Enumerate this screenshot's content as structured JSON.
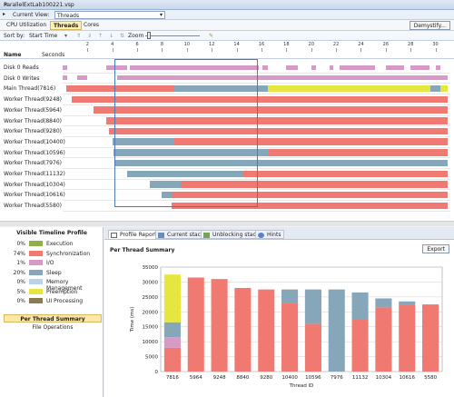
{
  "window": {
    "title": "ParallelExtLab100221.vsp"
  },
  "view": {
    "label": "Current View:",
    "selected": "Threads"
  },
  "tabs": [
    {
      "label": "CPU Utilization"
    },
    {
      "label": "Threads"
    },
    {
      "label": "Cores"
    }
  ],
  "demystify_label": "Demystify...",
  "toolbar": {
    "sort_label": "Sort by:",
    "sort_value": "Start Time",
    "zoom_label": "Zoom"
  },
  "timeline": {
    "name_header": "Name",
    "seconds_header": "Seconds",
    "ticks": [
      "2",
      "4",
      "6",
      "8",
      "10",
      "12",
      "14",
      "16",
      "18",
      "20",
      "22",
      "24",
      "26",
      "28",
      "30"
    ],
    "rows": [
      {
        "label": "Disk 0 Reads"
      },
      {
        "label": "Disk 0 Writes"
      },
      {
        "label": "Main Thread(7816)"
      },
      {
        "label": "Worker Thread(9248)"
      },
      {
        "label": "Worker Thread(5964)"
      },
      {
        "label": "Worker Thread(8840)"
      },
      {
        "label": "Worker Thread(9280)"
      },
      {
        "label": "Worker Thread(10400)"
      },
      {
        "label": "Worker Thread(10596)"
      },
      {
        "label": "Worker Thread(7976)"
      },
      {
        "label": "Worker Thread(11132)"
      },
      {
        "label": "Worker Thread(10304)"
      },
      {
        "label": "Worker Thread(10616)"
      },
      {
        "label": "Worker Thread(5580)"
      }
    ]
  },
  "profile": {
    "title": "Visible Timeline Profile",
    "legend": [
      {
        "pct": "0%",
        "name": "Execution",
        "color": "#8fb04a"
      },
      {
        "pct": "74%",
        "name": "Synchronization",
        "color": "#f07a72"
      },
      {
        "pct": "1%",
        "name": "I/O",
        "color": "#d79ac6"
      },
      {
        "pct": "20%",
        "name": "Sleep",
        "color": "#86a6ba"
      },
      {
        "pct": "0%",
        "name": "Memory Management",
        "color": "#bcd2e6"
      },
      {
        "pct": "5%",
        "name": "Preemption",
        "color": "#e6e640"
      },
      {
        "pct": "0%",
        "name": "UI Processing",
        "color": "#8b7b52"
      }
    ],
    "per_thread_summary": "Per Thread Summary",
    "file_operations": "File Operations"
  },
  "report_tabs": [
    {
      "label": "Profile Report"
    },
    {
      "label": "Current stack"
    },
    {
      "label": "Unblocking stack"
    },
    {
      "label": "Hints"
    }
  ],
  "summary": {
    "title": "Per Thread Summary",
    "export_label": "Export"
  },
  "chart_data": {
    "type": "bar",
    "stacked": true,
    "categories": [
      "7816",
      "5964",
      "9248",
      "8840",
      "9280",
      "10400",
      "10596",
      "7976",
      "11132",
      "10304",
      "10616",
      "5580"
    ],
    "series": [
      {
        "name": "Synchronization",
        "color": "#f07a72",
        "values": [
          8000,
          31500,
          31000,
          28000,
          27500,
          23000,
          16000,
          0,
          17500,
          21500,
          22500,
          22500
        ]
      },
      {
        "name": "I/O",
        "color": "#d79ac6",
        "values": [
          3500,
          0,
          0,
          0,
          0,
          0,
          0,
          0,
          0,
          0,
          0,
          0
        ]
      },
      {
        "name": "Sleep",
        "color": "#86a6ba",
        "values": [
          5000,
          0,
          0,
          0,
          0,
          4500,
          11500,
          27500,
          9000,
          3000,
          1000,
          0
        ]
      },
      {
        "name": "Memory Management",
        "color": "#bcd2e6",
        "values": [
          0,
          0,
          0,
          0,
          0,
          0,
          0,
          0,
          0,
          0,
          0,
          0
        ]
      },
      {
        "name": "Preemption",
        "color": "#e6e640",
        "values": [
          16000,
          0,
          0,
          0,
          0,
          0,
          0,
          0,
          0,
          0,
          0,
          0
        ]
      }
    ],
    "ylabel": "Time (ms)",
    "xlabel": "Thread ID",
    "yticks": [
      "0",
      "5000",
      "10000",
      "15000",
      "20000",
      "25000",
      "30000",
      "35000"
    ],
    "ylim": [
      0,
      35000
    ],
    "grid": true,
    "legend": "none"
  }
}
